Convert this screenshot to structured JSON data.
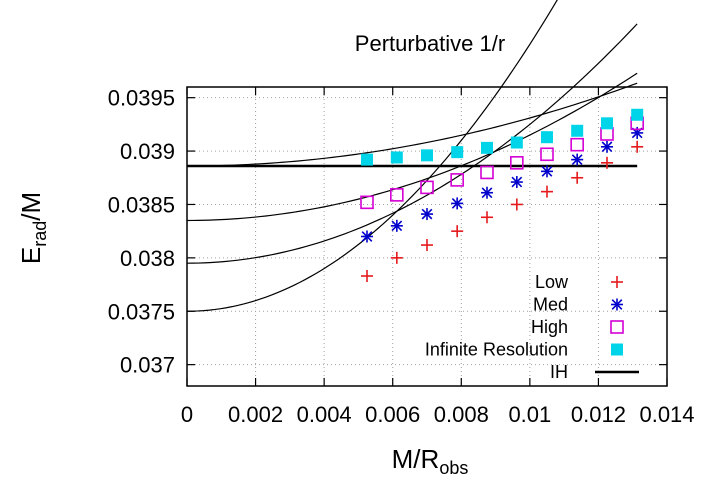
{
  "chart_data": {
    "type": "scatter",
    "title": "Perturbative 1/r",
    "xlabel_main": "M/R",
    "xlabel_sub": "obs",
    "ylabel_main": "E",
    "ylabel_sub": "rad",
    "ylabel_tail": "/M",
    "xlim": [
      0,
      0.014
    ],
    "ylim": [
      0.0368,
      0.0396
    ],
    "xticks": [
      0,
      0.002,
      0.004,
      0.006,
      0.008,
      0.01,
      0.012,
      0.014
    ],
    "xtick_labels": [
      "0",
      "0.002",
      "0.004",
      "0.006",
      "0.008",
      "0.01",
      "0.012",
      "0.014"
    ],
    "yticks": [
      0.037,
      0.0375,
      0.038,
      0.0385,
      0.039,
      0.0395
    ],
    "ytick_labels": [
      "0.037",
      "0.0375",
      "0.038",
      "0.0385",
      "0.039",
      "0.0395"
    ],
    "grid": true,
    "legend_position": "bottom-right",
    "series": [
      {
        "name": "Low",
        "marker": "plus",
        "color": "#e41a1c",
        "x": [
          0.00525,
          0.00612,
          0.007,
          0.00788,
          0.00875,
          0.00962,
          0.0105,
          0.01138,
          0.01225,
          0.01313
        ],
        "y": [
          0.03783,
          0.038,
          0.03812,
          0.03825,
          0.03838,
          0.0385,
          0.03862,
          0.03875,
          0.03889,
          0.03904
        ],
        "fit": [
          0.0375,
          0,
          25.0
        ]
      },
      {
        "name": "Med",
        "marker": "asterisk",
        "color": "#0000cc",
        "x": [
          0.00525,
          0.00612,
          0.007,
          0.00788,
          0.00875,
          0.00962,
          0.0105,
          0.01138,
          0.01225,
          0.01313
        ],
        "y": [
          0.0382,
          0.0383,
          0.03841,
          0.03851,
          0.03861,
          0.03871,
          0.03881,
          0.03892,
          0.03904,
          0.03917
        ],
        "fit": [
          0.03795,
          0,
          13.0
        ]
      },
      {
        "name": "High",
        "marker": "square-open",
        "color": "#d400d4",
        "x": [
          0.00525,
          0.00612,
          0.007,
          0.00788,
          0.00875,
          0.00962,
          0.0105,
          0.01138,
          0.01225,
          0.01313
        ],
        "y": [
          0.03852,
          0.03859,
          0.03866,
          0.03873,
          0.0388,
          0.03889,
          0.03897,
          0.03906,
          0.03916,
          0.03926
        ],
        "fit": [
          0.03835,
          0,
          8.0
        ]
      },
      {
        "name": "Infinite Resolution",
        "marker": "square-filled",
        "color": "#00d4e8",
        "x": [
          0.00525,
          0.00612,
          0.007,
          0.00788,
          0.00875,
          0.00962,
          0.0105,
          0.01138,
          0.01225,
          0.01313
        ],
        "y": [
          0.03892,
          0.03894,
          0.03896,
          0.03899,
          0.03903,
          0.03908,
          0.03913,
          0.03919,
          0.03926,
          0.03934
        ],
        "fit": [
          0.03886,
          0,
          4.5
        ]
      }
    ],
    "hline": {
      "name": "IH",
      "y": 0.03886,
      "x_range": [
        0,
        0.01313
      ],
      "color": "#000000"
    }
  }
}
